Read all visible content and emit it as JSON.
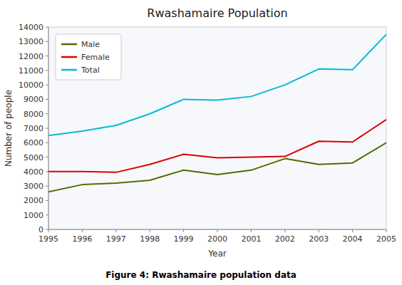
{
  "chart_data": {
    "type": "line",
    "title": "Rwashamaire Population",
    "xlabel": "Year",
    "ylabel": "Number of people",
    "caption": "Figure 4: Rwashamaire population data",
    "x": [
      1995,
      1996,
      1997,
      1998,
      1999,
      2000,
      2001,
      2002,
      2003,
      2004,
      2005
    ],
    "series": [
      {
        "name": "Male",
        "color": "#556b00",
        "values": [
          2600,
          3100,
          3200,
          3400,
          4100,
          3800,
          4100,
          4900,
          4500,
          4600,
          6000
        ]
      },
      {
        "name": "Female",
        "color": "#dd0000",
        "values": [
          4000,
          4000,
          3950,
          4500,
          5200,
          4950,
          5000,
          5050,
          6100,
          6050,
          7600
        ]
      },
      {
        "name": "Total",
        "color": "#00bcd4",
        "values": [
          6500,
          6800,
          7200,
          8000,
          9000,
          8950,
          9200,
          10000,
          11100,
          11050,
          13500
        ]
      }
    ],
    "xlim": [
      1995,
      2005
    ],
    "xticks": [
      1995,
      1996,
      1997,
      1998,
      1999,
      2000,
      2001,
      2002,
      2003,
      2004,
      2005
    ],
    "ylim": [
      0,
      14000
    ],
    "yticks": [
      0,
      1000,
      2000,
      3000,
      4000,
      5000,
      6000,
      7000,
      8000,
      9000,
      10000,
      11000,
      12000,
      13000,
      14000
    ],
    "legend": "upper left",
    "grid": false
  }
}
